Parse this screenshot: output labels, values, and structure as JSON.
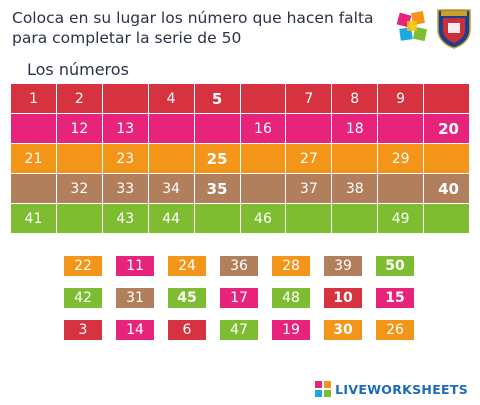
{
  "instructions": {
    "line1": "Coloca en su lugar los número que hacen falta",
    "line2": "para completar la serie de 50"
  },
  "subtitle": "Los números",
  "colors": {
    "row1": "#d6323f",
    "row2": "#e8237c",
    "row3": "#f39519",
    "row4": "#b17f5c",
    "row5": "#7ebd32"
  },
  "grid": {
    "rows": [
      [
        {
          "t": "1"
        },
        {
          "t": "2"
        },
        {
          "t": ""
        },
        {
          "t": "4"
        },
        {
          "t": "5",
          "b": true
        },
        {
          "t": ""
        },
        {
          "t": "7"
        },
        {
          "t": "8"
        },
        {
          "t": "9"
        },
        {
          "t": ""
        }
      ],
      [
        {
          "t": ""
        },
        {
          "t": "12"
        },
        {
          "t": "13"
        },
        {
          "t": ""
        },
        {
          "t": ""
        },
        {
          "t": "16"
        },
        {
          "t": ""
        },
        {
          "t": "18"
        },
        {
          "t": ""
        },
        {
          "t": "20",
          "b": true,
          "r": true
        }
      ],
      [
        {
          "t": "21"
        },
        {
          "t": ""
        },
        {
          "t": "23"
        },
        {
          "t": ""
        },
        {
          "t": "25",
          "b": true
        },
        {
          "t": ""
        },
        {
          "t": "27"
        },
        {
          "t": ""
        },
        {
          "t": "29"
        },
        {
          "t": ""
        }
      ],
      [
        {
          "t": ""
        },
        {
          "t": "32"
        },
        {
          "t": "33"
        },
        {
          "t": "34"
        },
        {
          "t": "35",
          "b": true
        },
        {
          "t": ""
        },
        {
          "t": "37"
        },
        {
          "t": "38"
        },
        {
          "t": ""
        },
        {
          "t": "40",
          "b": true,
          "r": true
        }
      ],
      [
        {
          "t": "41"
        },
        {
          "t": ""
        },
        {
          "t": "43"
        },
        {
          "t": "44"
        },
        {
          "t": ""
        },
        {
          "t": "46"
        },
        {
          "t": ""
        },
        {
          "t": ""
        },
        {
          "t": "49"
        },
        {
          "t": ""
        }
      ]
    ]
  },
  "tiles": [
    [
      {
        "t": "22",
        "c": "#f39519"
      },
      {
        "t": "11",
        "c": "#e8237c"
      },
      {
        "t": "24",
        "c": "#f39519"
      },
      {
        "t": "36",
        "c": "#b17f5c"
      },
      {
        "t": "28",
        "c": "#f39519"
      },
      {
        "t": "39",
        "c": "#b17f5c"
      },
      {
        "t": "50",
        "c": "#7ebd32",
        "b": true
      }
    ],
    [
      {
        "t": "42",
        "c": "#7ebd32"
      },
      {
        "t": "31",
        "c": "#b17f5c"
      },
      {
        "t": "45",
        "c": "#7ebd32",
        "b": true
      },
      {
        "t": "17",
        "c": "#e8237c"
      },
      {
        "t": "48",
        "c": "#7ebd32"
      },
      {
        "t": "10",
        "c": "#d6323f",
        "b": true
      },
      {
        "t": "15",
        "c": "#e8237c",
        "b": true
      }
    ],
    [
      {
        "t": "3",
        "c": "#d6323f"
      },
      {
        "t": "14",
        "c": "#e8237c"
      },
      {
        "t": "6",
        "c": "#d6323f"
      },
      {
        "t": "47",
        "c": "#7ebd32"
      },
      {
        "t": "19",
        "c": "#e8237c"
      },
      {
        "t": "30",
        "c": "#f39519",
        "b": true
      },
      {
        "t": "26",
        "c": "#f39519"
      }
    ]
  ],
  "brand": {
    "text": "LIVEWORKSHEETS",
    "color": "#1c6bb5"
  },
  "logos": {
    "left": "abstract-colorful-logo-icon",
    "right": "school-shield-logo-icon"
  }
}
